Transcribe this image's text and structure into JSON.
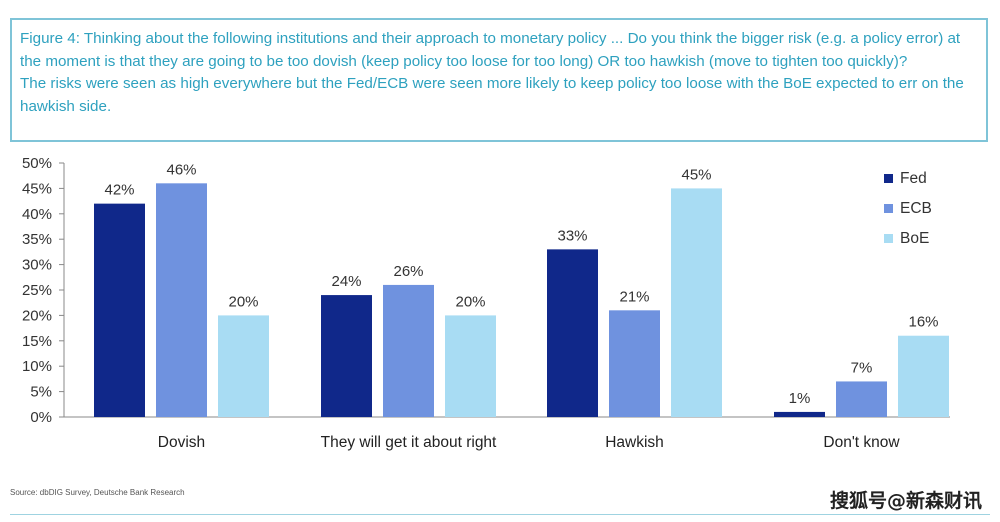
{
  "caption": {
    "line1": "Figure 4: Thinking about the following institutions and their approach to monetary policy ... Do you think the bigger risk (e.g. a policy error) at the moment is that they are going to be too dovish (keep policy too loose for too long) OR too hawkish (move to tighten too quickly)?",
    "line2": "The risks were seen as high everywhere but the Fed/ECB were seen more likely to keep policy too loose with the BoE expected to err on the hawkish side."
  },
  "chart_data": {
    "type": "bar",
    "categories": [
      "Dovish",
      "They will get it about right",
      "Hawkish",
      "Don't know"
    ],
    "series": [
      {
        "name": "Fed",
        "values": [
          42,
          24,
          33,
          1
        ],
        "color": "#10288a"
      },
      {
        "name": "ECB",
        "values": [
          46,
          26,
          21,
          7
        ],
        "color": "#6f92df"
      },
      {
        "name": "BoE",
        "values": [
          20,
          20,
          45,
          16
        ],
        "color": "#a8dcf3"
      }
    ],
    "value_labels": [
      [
        "42%",
        "24%",
        "33%",
        "1%"
      ],
      [
        "46%",
        "26%",
        "21%",
        "7%"
      ],
      [
        "20%",
        "20%",
        "45%",
        "16%"
      ]
    ],
    "y_ticks": [
      "0%",
      "5%",
      "10%",
      "15%",
      "20%",
      "25%",
      "30%",
      "35%",
      "40%",
      "45%",
      "50%"
    ],
    "ylim": [
      0,
      50
    ],
    "legend_position": "top-right",
    "grid": false
  },
  "source": "Source: dbDIG Survey, Deutsche Bank Research",
  "watermark": "搜狐号@新森财讯"
}
